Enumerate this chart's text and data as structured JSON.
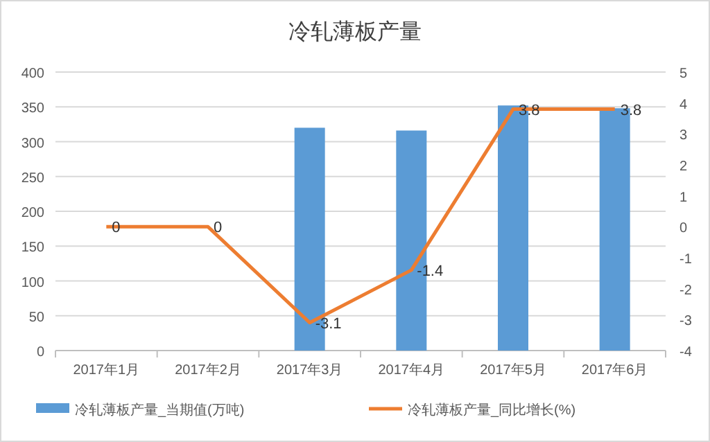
{
  "chart_data": {
    "type": "bar",
    "title": "冷轧薄板产量",
    "categories": [
      "2017年1月",
      "2017年2月",
      "2017年3月",
      "2017年4月",
      "2017年5月",
      "2017年6月"
    ],
    "series": [
      {
        "name": "冷轧薄板产量_当期值(万吨)",
        "color": "#5b9bd5",
        "values": [
          null,
          null,
          320,
          316,
          352,
          348
        ]
      },
      {
        "name": "冷轧薄板产量_同比增长(%)",
        "type": "line",
        "axis": "y2",
        "color": "#ed7d31",
        "values": [
          0,
          0,
          -3.1,
          -1.4,
          3.8,
          3.8
        ],
        "value_labels": [
          "0",
          "0",
          "-3.1",
          "-1.4",
          "3.8",
          "3.8"
        ]
      }
    ],
    "ylim": [
      0,
      400
    ],
    "yticks": [
      0,
      50,
      100,
      150,
      200,
      250,
      300,
      350,
      400
    ],
    "y2lim": [
      -4,
      5
    ],
    "y2ticks": [
      -4,
      -3,
      -2,
      -1,
      0,
      1,
      2,
      3,
      4,
      5
    ],
    "grid": "y",
    "legend": "bottom"
  }
}
